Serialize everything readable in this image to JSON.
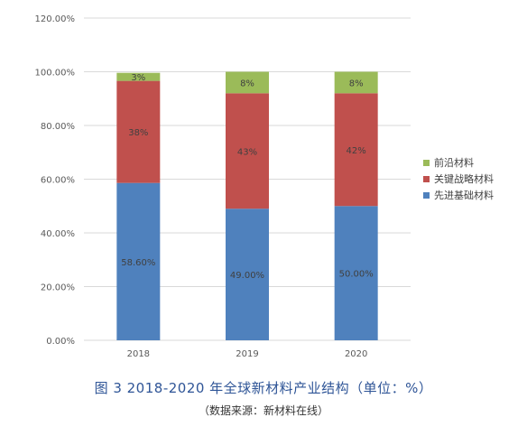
{
  "chart_data": {
    "type": "bar",
    "stacked": true,
    "categories": [
      "2018",
      "2019",
      "2020"
    ],
    "series": [
      {
        "name": "先进基础材料",
        "values": [
          58.6,
          49.0,
          50.0
        ],
        "labels": [
          "58.60%",
          "49.00%",
          "50.00%"
        ],
        "color": "#4f81bd"
      },
      {
        "name": "关键战略材料",
        "values": [
          38,
          43,
          42
        ],
        "labels": [
          "38%",
          "43%",
          "42%"
        ],
        "color": "#c0504d"
      },
      {
        "name": "前沿材料",
        "values": [
          3,
          8,
          8
        ],
        "labels": [
          "3%",
          "8%",
          "8%"
        ],
        "color": "#9bbb59"
      }
    ],
    "ylim": [
      0,
      120
    ],
    "yticks": [
      "0.00%",
      "20.00%",
      "40.00%",
      "60.00%",
      "80.00%",
      "100.00%",
      "120.00%"
    ],
    "yticks_values": [
      0,
      20,
      40,
      60,
      80,
      100,
      120
    ],
    "grid": true,
    "legend": "right"
  },
  "caption": {
    "title": "图 3 2018-2020 年全球新材料产业结构（单位：%）",
    "source": "（数据来源：新材料在线）"
  },
  "colors": {
    "grid": "#d9d9d9",
    "axis_text": "#595959",
    "caption": "#2f5597"
  }
}
